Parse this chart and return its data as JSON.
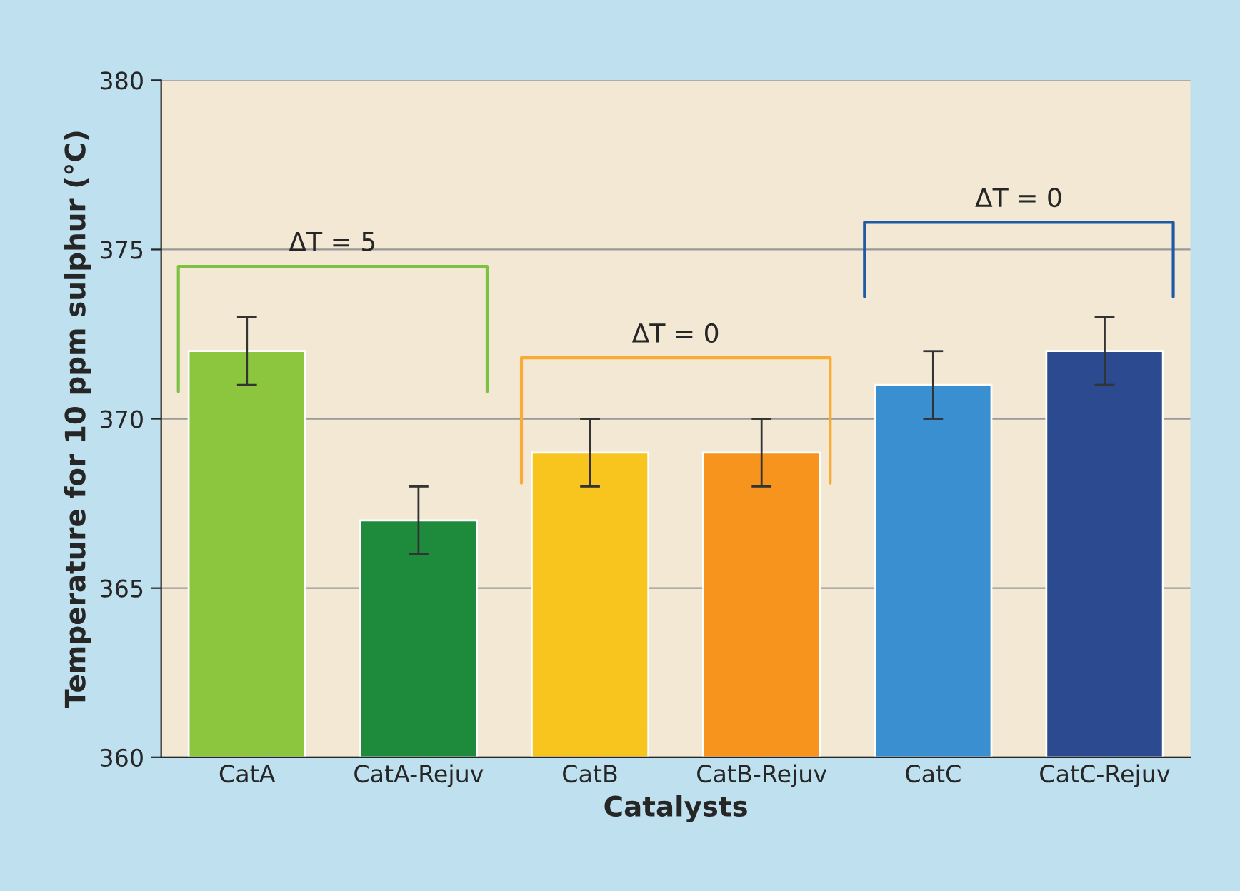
{
  "chart_data": {
    "type": "bar",
    "xlabel": "Catalysts",
    "ylabel": "Temperature for 10 ppm sulphur (°C)",
    "categories": [
      "CatA",
      "CatA-Rejuv",
      "CatB",
      "CatB-Rejuv",
      "CatC",
      "CatC-Rejuv"
    ],
    "values": [
      372,
      367,
      369,
      369,
      371,
      372
    ],
    "errors": [
      1,
      1,
      1,
      1,
      1,
      1
    ],
    "colors": [
      "#8cc63f",
      "#1e8a3c",
      "#f7c51e",
      "#f7941d",
      "#3a8fd0",
      "#2b4a8f"
    ],
    "ylim": [
      360,
      380
    ],
    "yticks": [
      360,
      365,
      370,
      375,
      380
    ],
    "grid": "y",
    "annotations": [
      "ΔT = 5",
      "ΔT = 0",
      "ΔT = 0"
    ]
  }
}
